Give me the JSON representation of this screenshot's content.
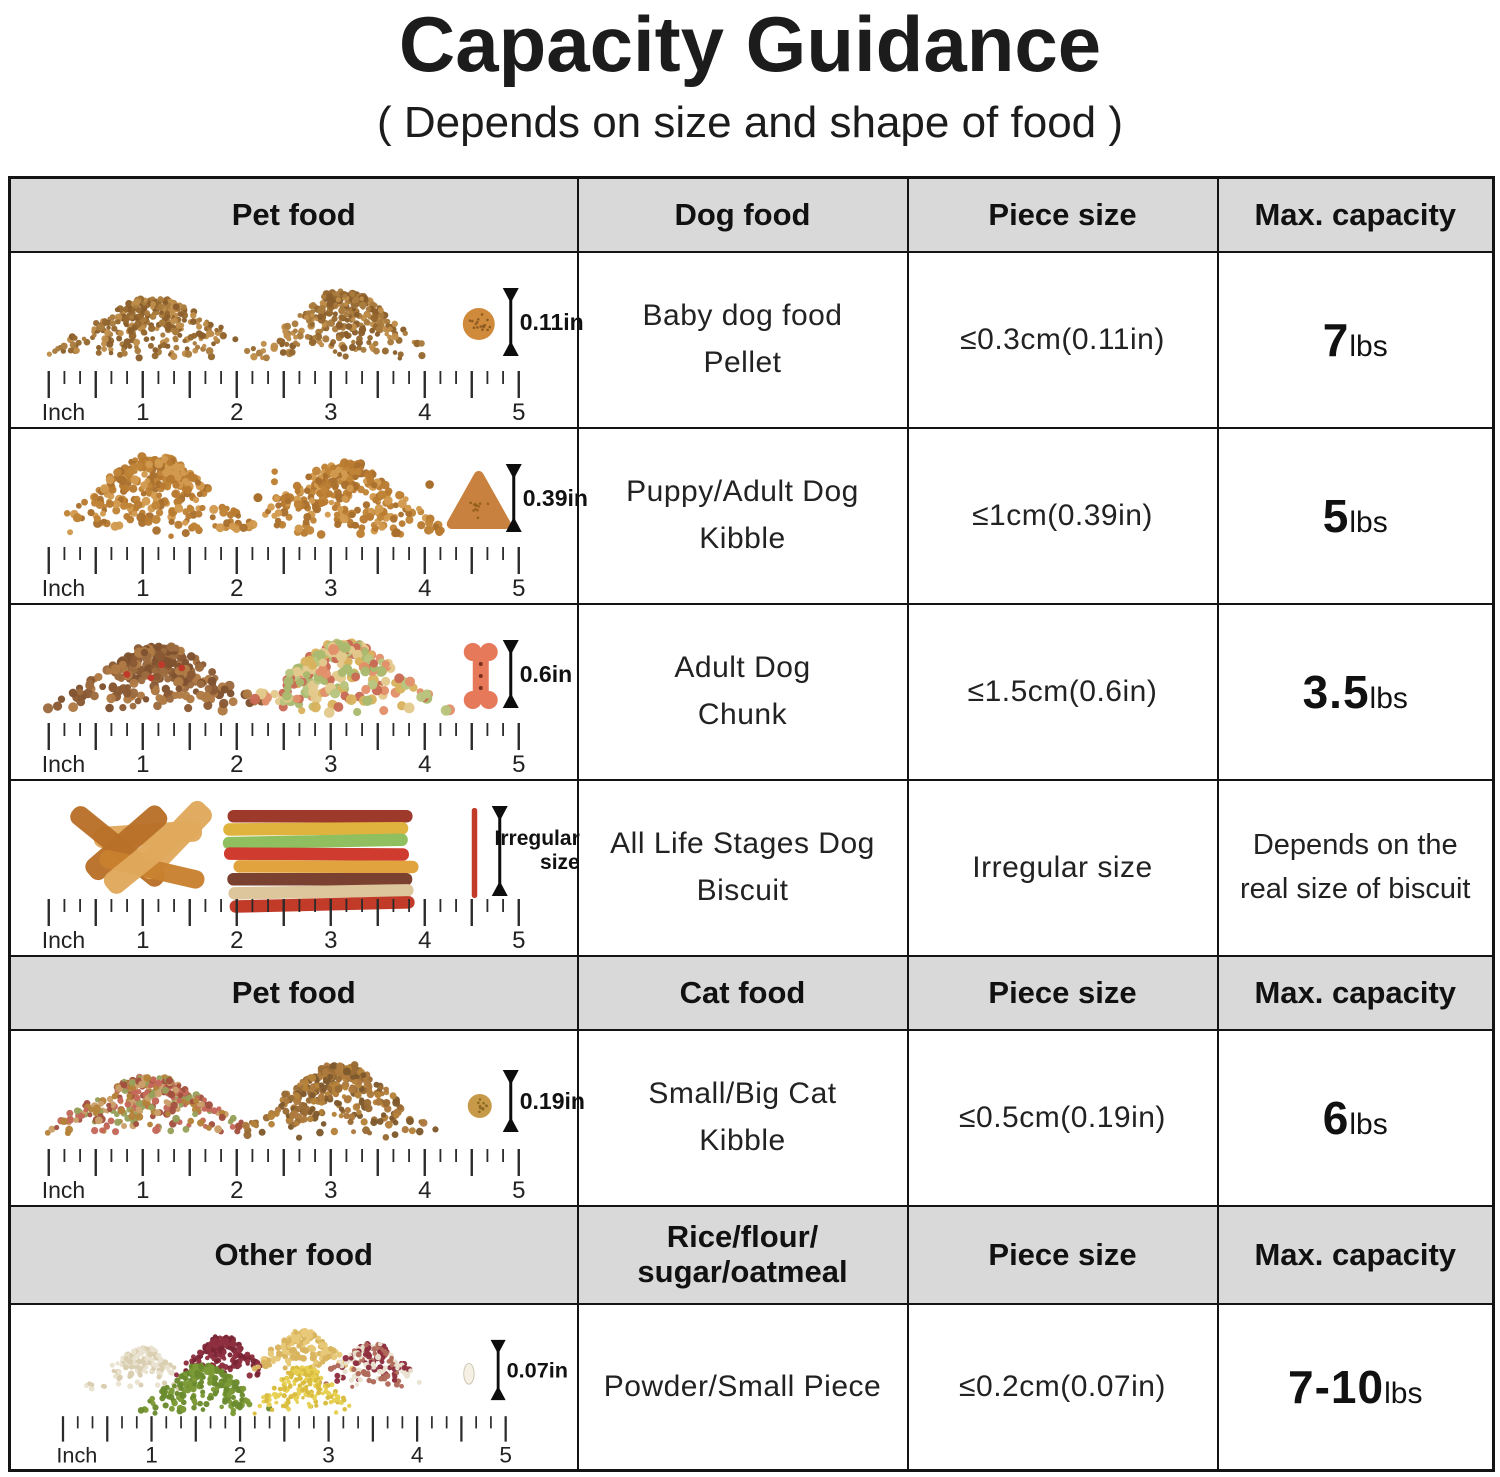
{
  "page": {
    "title": "Capacity Guidance",
    "subtitle": "( Depends on size and shape of food )"
  },
  "colors": {
    "header_bg": "#d9d9d9",
    "border": "#141414",
    "text": "#1a1a1a"
  },
  "ruler": {
    "unit_label": "Inch",
    "tick_labels": [
      "1",
      "2",
      "3",
      "4",
      "5"
    ]
  },
  "headers": [
    {
      "pet": "Pet food",
      "type": "Dog food",
      "size": "Piece size",
      "capacity": "Max. capacity"
    },
    {
      "pet": "Pet food",
      "type": "Cat food",
      "size": "Piece size",
      "capacity": "Max. capacity"
    },
    {
      "pet": "Other food",
      "type": "Rice/flour/\nsugar/oatmeal",
      "size": "Piece size",
      "capacity": "Max. capacity"
    }
  ],
  "rows": [
    {
      "name": "Baby dog food\nPellet",
      "piece_size": "≤0.3cm(0.11in)",
      "capacity_value": "7",
      "capacity_unit": "lbs",
      "marker_lines": [
        "0.11in"
      ],
      "art": "pellets",
      "art_colors": [
        "#a97c3e",
        "#8a5e2b",
        "#bf8d4a",
        "#96682f"
      ]
    },
    {
      "name": "Puppy/Adult Dog\nKibble",
      "piece_size": "≤1cm(0.39in)",
      "capacity_value": "5",
      "capacity_unit": "lbs",
      "marker_lines": [
        "0.39in"
      ],
      "art": "kibble",
      "art_colors": [
        "#c08438",
        "#a96f2d",
        "#d29a4e",
        "#b97b31"
      ]
    },
    {
      "name": "Adult Dog\nChunk",
      "piece_size": "≤1.5cm(0.6in)",
      "capacity_value": "3.5",
      "capacity_unit": "lbs",
      "marker_lines": [
        "0.6in"
      ],
      "art": "chunks",
      "art_colors": [
        "#9c6b3f",
        "#7f5230",
        "#b07b45",
        "#8a5a35"
      ]
    },
    {
      "name": "All Life Stages Dog\nBiscuit",
      "piece_size": "Irregular size",
      "capacity_text": "Depends on the\nreal size of biscuit",
      "marker_lines": [
        "Irregular",
        "size"
      ],
      "art": "sticks",
      "art_colors": [
        "#9e3a2c",
        "#e0b33e",
        "#8fbf5e",
        "#cf3b2e",
        "#e0a33e",
        "#7a4030",
        "#ddc69c",
        "#c23a28"
      ]
    },
    {
      "name": "Small/Big Cat\nKibble",
      "piece_size": "≤0.5cm(0.19in)",
      "capacity_value": "6",
      "capacity_unit": "lbs",
      "marker_lines": [
        "0.19in"
      ],
      "art": "cat_kibble",
      "art_colors": [
        "#b5823a",
        "#c4685a",
        "#97a05a",
        "#caa06a",
        "#a3513f"
      ]
    },
    {
      "name": "Powder/Small Piece",
      "piece_size": "≤0.2cm(0.07in)",
      "capacity_value": "7-10",
      "capacity_unit": "lbs",
      "marker_lines": [
        "0.07in"
      ],
      "art": "grains",
      "art_colors": [
        "#e9e2cf",
        "#8e3040",
        "#e7c878",
        "#7c9a36",
        "#e6cf52",
        "#b06a5a"
      ]
    }
  ]
}
